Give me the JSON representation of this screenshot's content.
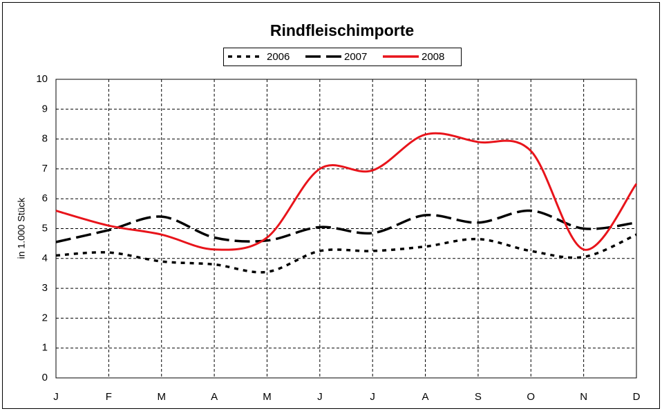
{
  "chart_data": {
    "type": "line",
    "title": "Rindfleischimporte",
    "y_label": "in 1.000 Stück",
    "categories": [
      "J",
      "F",
      "M",
      "A",
      "M",
      "J",
      "J",
      "A",
      "S",
      "O",
      "N",
      "D"
    ],
    "series": [
      {
        "name": "2006",
        "color": "#000000",
        "dash": "dotted",
        "values": [
          4.1,
          4.2,
          3.9,
          3.8,
          3.55,
          4.25,
          4.25,
          4.4,
          4.65,
          4.25,
          4.05,
          4.8
        ]
      },
      {
        "name": "2007",
        "color": "#000000",
        "dash": "dashed",
        "values": [
          4.55,
          4.95,
          5.4,
          4.7,
          4.6,
          5.05,
          4.85,
          5.45,
          5.2,
          5.6,
          5.0,
          5.2
        ]
      },
      {
        "name": "2008",
        "color": "#e8141b",
        "dash": "solid",
        "values": [
          5.6,
          5.1,
          4.8,
          4.3,
          4.7,
          7.0,
          6.95,
          8.15,
          7.9,
          7.6,
          4.3,
          6.5
        ]
      }
    ],
    "ylim": [
      0,
      10
    ],
    "yticks": [
      0,
      1,
      2,
      3,
      4,
      5,
      6,
      7,
      8,
      9,
      10
    ],
    "grid": true,
    "smooth": true,
    "legend": "top"
  }
}
